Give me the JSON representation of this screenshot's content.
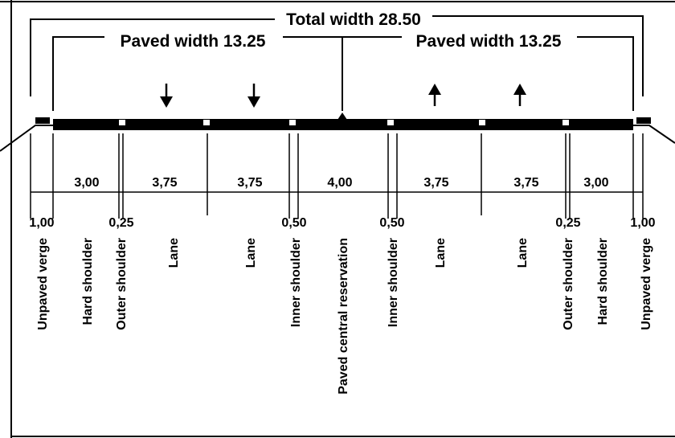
{
  "titles": {
    "total": "Total width 28.50",
    "paved_left": "Paved width 13.25",
    "paved_right": "Paved width 13.25"
  },
  "upper_dimensions": [
    "3,00",
    "3,75",
    "3,75",
    "4,00",
    "3,75",
    "3,75",
    "3,00"
  ],
  "lower_dimensions": [
    "1,00",
    "0,25",
    "0,50",
    "0,50",
    "0,25",
    "1,00"
  ],
  "components": [
    "Unpaved verge",
    "Hard shoulder",
    "Outer shoulder",
    "Lane",
    "Lane",
    "Inner shoulder",
    "Paved central reservation",
    "Inner shoulder",
    "Lane",
    "Lane",
    "Outer shoulder",
    "Hard shoulder",
    "Unpaved verge"
  ],
  "traffic_direction": [
    "down",
    "down",
    "up",
    "up"
  ],
  "colors": {
    "line": "#000000",
    "background": "#ffffff"
  }
}
